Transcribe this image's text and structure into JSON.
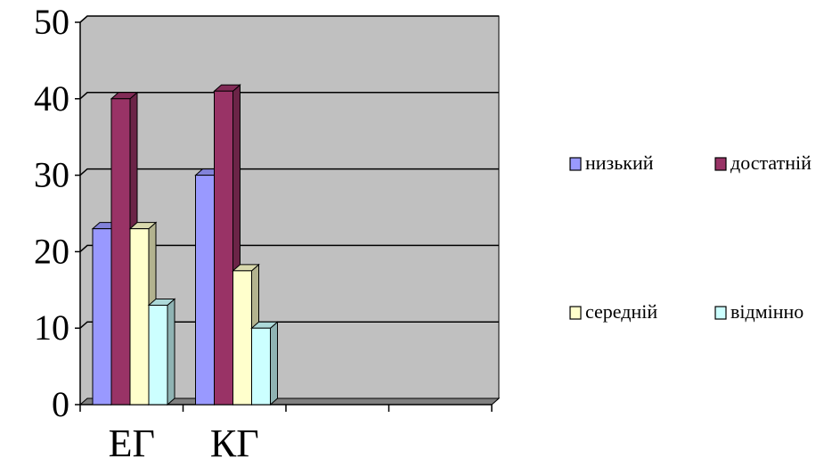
{
  "chart_data": {
    "type": "bar",
    "categories": [
      "ЕГ",
      "КГ"
    ],
    "series": [
      {
        "name": "низький",
        "values": [
          23,
          30
        ],
        "color": "#9999FF"
      },
      {
        "name": "достатній",
        "values": [
          40,
          41
        ],
        "color": "#993366"
      },
      {
        "name": "середній",
        "values": [
          23,
          17.5
        ],
        "color": "#FFFFCC"
      },
      {
        "name": "відмінно",
        "values": [
          13,
          10
        ],
        "color": "#CCFFFF"
      }
    ],
    "ylim": [
      0,
      50
    ],
    "yticks": [
      "0",
      "10",
      "20",
      "30",
      "40",
      "50"
    ],
    "grid": true,
    "legend_position": "right",
    "plot_background": "#C0C0C0",
    "three_d": true
  }
}
